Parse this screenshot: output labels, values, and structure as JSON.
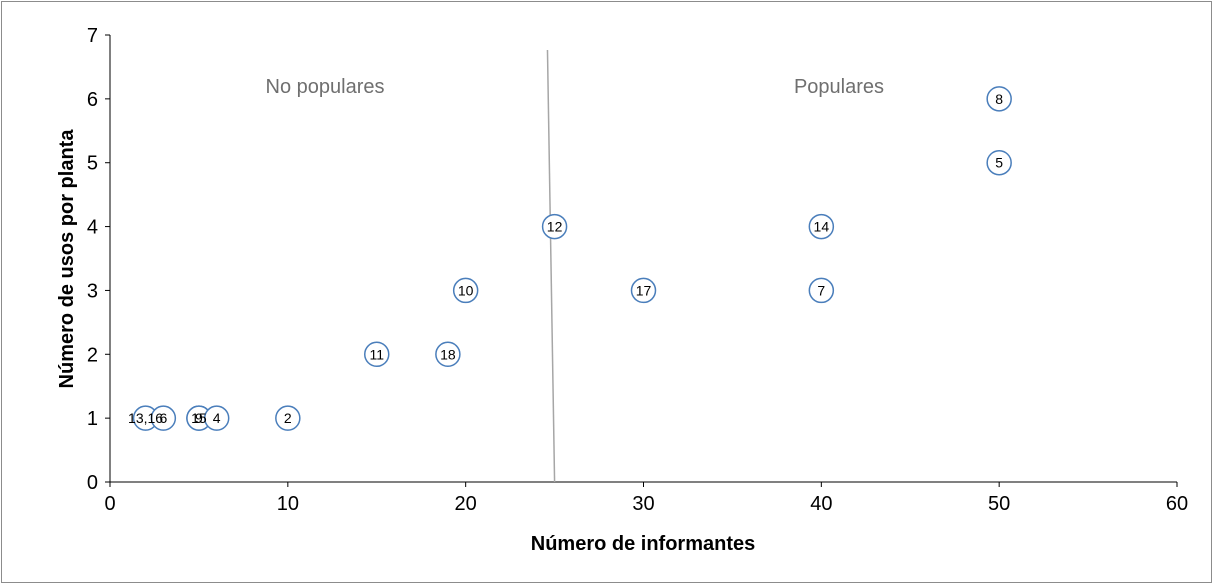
{
  "chart_data": {
    "type": "scatter",
    "xlabel": "Número de informantes",
    "ylabel": "Número de usos por planta",
    "xlim": [
      0,
      60
    ],
    "ylim": [
      0,
      7
    ],
    "xticks": [
      "0",
      "10",
      "20",
      "30",
      "40",
      "50",
      "60"
    ],
    "yticks": [
      "0",
      "1",
      "2",
      "3",
      "4",
      "5",
      "6",
      "7"
    ],
    "grid": false,
    "marker": {
      "shape": "circle",
      "stroke": "#4a7ebb",
      "fill": "#ffffff"
    },
    "region_labels": {
      "left": "No populares",
      "right": "Populares"
    },
    "divider": {
      "x_bottom": 25,
      "x_top": 24.6,
      "color": "#a6a6a6"
    },
    "points": [
      {
        "label": "13,16",
        "x": 2,
        "y": 1
      },
      {
        "label": "6",
        "x": 3,
        "y": 1
      },
      {
        "label": "15",
        "x": 5,
        "y": 1
      },
      {
        "label": "9",
        "x": 5,
        "y": 1
      },
      {
        "label": "4",
        "x": 6,
        "y": 1
      },
      {
        "label": "2",
        "x": 10,
        "y": 1
      },
      {
        "label": "11",
        "x": 15,
        "y": 2
      },
      {
        "label": "18",
        "x": 19,
        "y": 2
      },
      {
        "label": "10",
        "x": 20,
        "y": 3
      },
      {
        "label": "12",
        "x": 25,
        "y": 4
      },
      {
        "label": "17",
        "x": 30,
        "y": 3
      },
      {
        "label": "7",
        "x": 40,
        "y": 3
      },
      {
        "label": "14",
        "x": 40,
        "y": 4
      },
      {
        "label": "5",
        "x": 50,
        "y": 5
      },
      {
        "label": "8",
        "x": 50,
        "y": 6
      }
    ]
  }
}
